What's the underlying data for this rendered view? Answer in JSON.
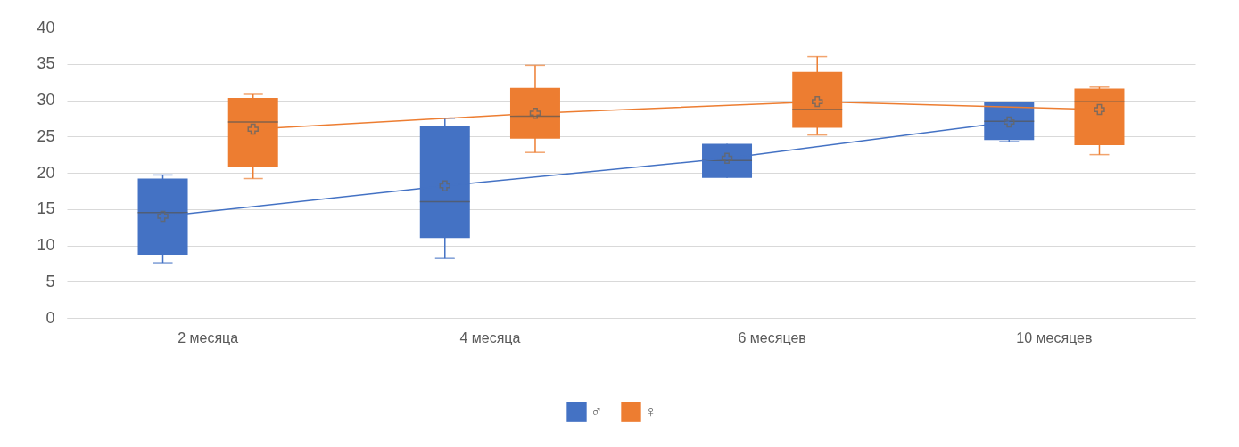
{
  "chart_data": {
    "type": "box",
    "categories": [
      "2 месяца",
      "4 месяца",
      "6 месяцев",
      "10 месяцев"
    ],
    "series": [
      {
        "name": "♂",
        "color": "#4472c4",
        "boxes": [
          {
            "low": 7.6,
            "q1": 8.7,
            "median": 14.5,
            "q3": 19.2,
            "high": 19.7,
            "mean": 14
          },
          {
            "low": 8.2,
            "q1": 11,
            "median": 16,
            "q3": 26.5,
            "high": 27.5,
            "mean": 18.2
          },
          {
            "low": 19.3,
            "q1": 19.3,
            "median": 21.7,
            "q3": 24,
            "high": 24,
            "mean": 22
          },
          {
            "low": 24.3,
            "q1": 24.5,
            "median": 27.1,
            "q3": 29.8,
            "high": 29.8,
            "mean": 27
          }
        ]
      },
      {
        "name": "♀",
        "color": "#ed7d31",
        "boxes": [
          {
            "low": 19.2,
            "q1": 20.8,
            "median": 27,
            "q3": 30.3,
            "high": 30.8,
            "mean": 26
          },
          {
            "low": 22.8,
            "q1": 24.7,
            "median": 27.8,
            "q3": 31.7,
            "high": 34.8,
            "mean": 28.2
          },
          {
            "low": 25.2,
            "q1": 26.2,
            "median": 28.7,
            "q3": 33.9,
            "high": 36,
            "mean": 29.8
          },
          {
            "low": 22.5,
            "q1": 23.8,
            "median": 29.8,
            "q3": 31.6,
            "high": 31.8,
            "mean": 28.7
          }
        ]
      },
      {
        "type": "line",
        "color": "#4472c4",
        "marker": "none",
        "values": [
          14,
          18.2,
          22,
          27
        ]
      },
      {
        "type": "line",
        "color": "#ed7d31",
        "marker": "none",
        "values": [
          26,
          28.2,
          29.8,
          28.7
        ]
      }
    ],
    "ylim": [
      0,
      40
    ],
    "yticks": [
      0,
      5,
      10,
      15,
      20,
      25,
      30,
      35,
      40
    ],
    "grid": "y",
    "legend": "bottom",
    "marker": "cross"
  }
}
